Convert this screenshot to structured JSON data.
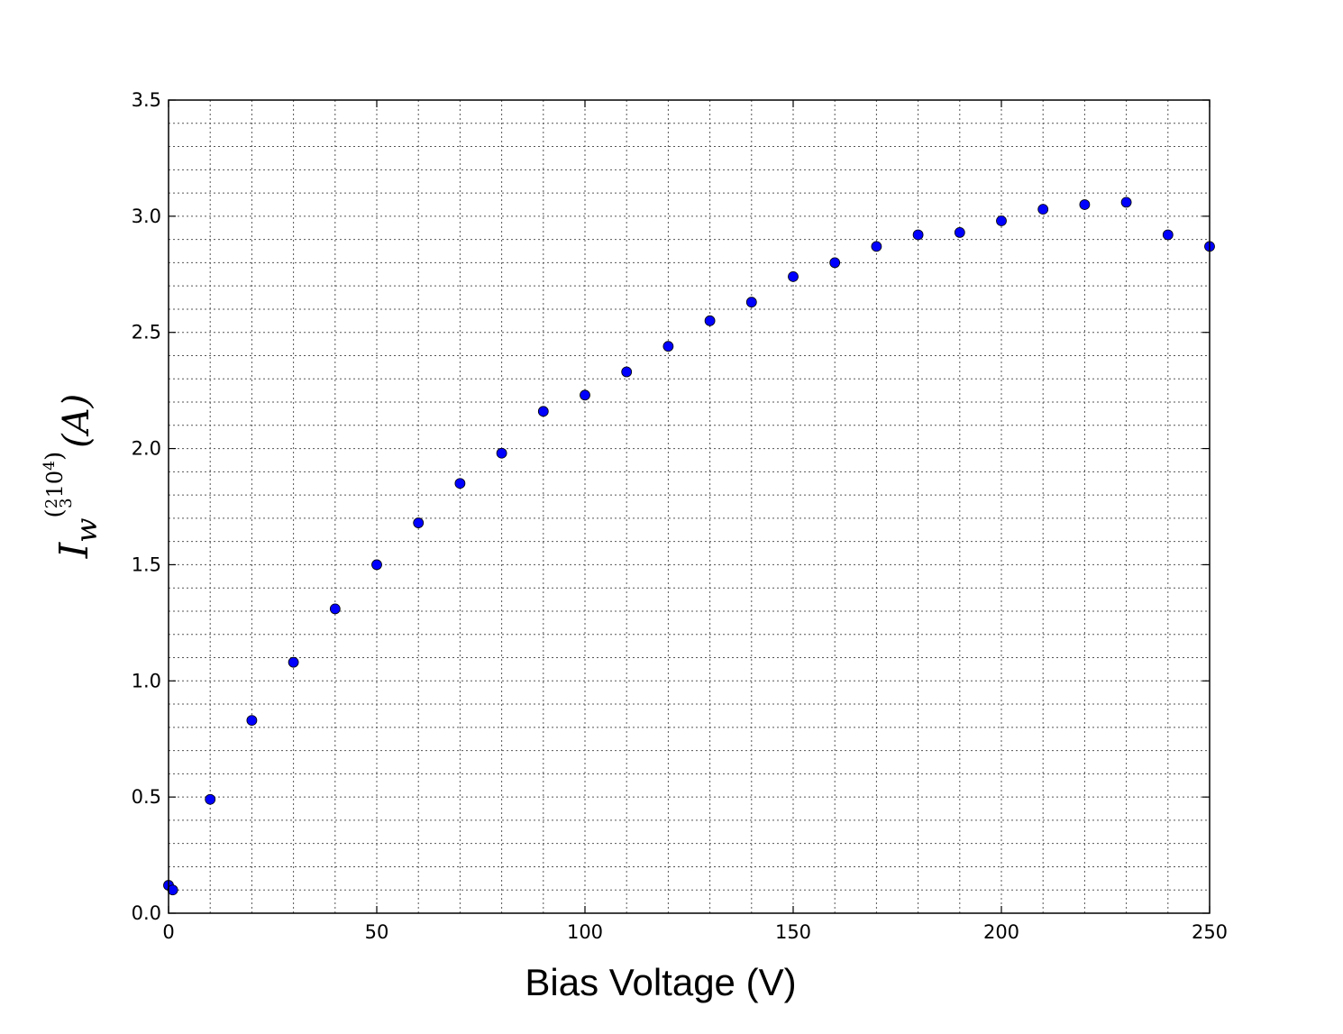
{
  "chart_data": {
    "type": "scatter",
    "title": "",
    "xlabel": "Bias Voltage (V)",
    "ylabel": {
      "symbol": "I",
      "subscript": "w",
      "superscript": "(",
      "frac_num": "2",
      "frac_den": "3",
      "power_base": "10",
      "power_exp": "4",
      "superscript_close": ")",
      "unit": "(A)"
    },
    "xlim": [
      0,
      250
    ],
    "ylim": [
      0.0,
      3.5
    ],
    "grid": true,
    "x_ticks": [
      "0",
      "50",
      "100",
      "150",
      "200",
      "250"
    ],
    "y_ticks": [
      "0.0",
      "0.5",
      "1.0",
      "1.5",
      "2.0",
      "2.5",
      "3.0",
      "3.5"
    ],
    "marker_color": "#0000ff",
    "series": [
      {
        "x": [
          0,
          1,
          10,
          20,
          30,
          40,
          50,
          60,
          70,
          80,
          90,
          100,
          110,
          120,
          130,
          140,
          150,
          160,
          170,
          180,
          190,
          200,
          210,
          220,
          230,
          240,
          250
        ],
        "y": [
          0.12,
          0.1,
          0.49,
          0.83,
          1.08,
          1.31,
          1.5,
          1.68,
          1.85,
          1.98,
          2.16,
          2.23,
          2.33,
          2.44,
          2.55,
          2.63,
          2.74,
          2.8,
          2.87,
          2.92,
          2.93,
          2.98,
          3.03,
          3.05,
          3.06,
          2.92,
          2.87
        ]
      }
    ]
  }
}
